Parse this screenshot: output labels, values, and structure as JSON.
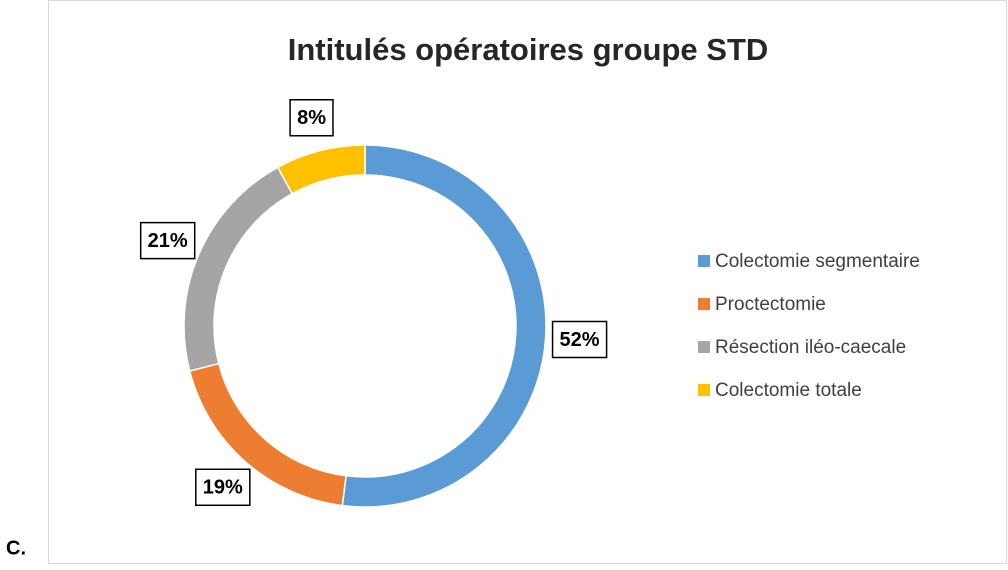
{
  "chart_data": {
    "type": "pie",
    "title": "Intitulés opératoires groupe STD",
    "categories": [
      "Colectomie segmentaire",
      "Proctectomie",
      "Résection iléo-caecale",
      "Colectomie totale"
    ],
    "values": [
      52,
      19,
      21,
      8
    ],
    "value_labels": [
      "52%",
      "19%",
      "21%",
      "8%"
    ],
    "colors": [
      "#5b9bd5",
      "#ed7d31",
      "#a5a5a5",
      "#ffc000"
    ],
    "donut": true,
    "legend": "right"
  },
  "figure_label": "C."
}
